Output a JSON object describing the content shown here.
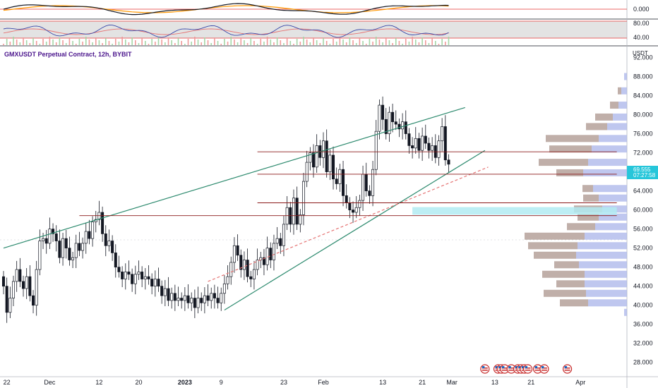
{
  "header": {
    "title": "GMXUSDT Perpetual Contract, 12h, BYBIT"
  },
  "axis": {
    "unit": "USDT"
  },
  "price_tag": {
    "price": "69.555",
    "countdown": "07:27:58",
    "color": "#26c6da"
  },
  "colors": {
    "up": "#131722",
    "down": "#131722",
    "trend": "#2e8b6f",
    "level": "#8b1a1a",
    "zone": "#b2ebf2"
  },
  "chart_data": {
    "type": "candlestick",
    "title": "GMXUSDT Perpetual Contract, 12h, BYBIT",
    "exchange": "BYBIT",
    "timeframe": "12h",
    "ylim": [
      25,
      94
    ],
    "price_ticks": [
      "92.000",
      "88.000",
      "84.000",
      "80.000",
      "76.000",
      "72.000",
      "68.000",
      "64.000",
      "60.000",
      "56.000",
      "52.000",
      "48.000",
      "44.000",
      "40.000",
      "36.000",
      "32.000",
      "28.000"
    ],
    "time_ticks": [
      {
        "label": "22",
        "bar": 1
      },
      {
        "label": "Dec",
        "bar": 14
      },
      {
        "label": "12",
        "bar": 29
      },
      {
        "label": "20",
        "bar": 41
      },
      {
        "label": "2023",
        "bar": 55,
        "bold": true
      },
      {
        "label": "9",
        "bar": 66
      },
      {
        "label": "23",
        "bar": 85
      },
      {
        "label": "Feb",
        "bar": 97
      },
      {
        "label": "13",
        "bar": 115
      },
      {
        "label": "21",
        "bar": 127
      },
      {
        "label": "Mar",
        "bar": 136
      },
      {
        "label": "13",
        "bar": 149
      },
      {
        "label": "21",
        "bar": 160
      },
      {
        "label": "Apr",
        "bar": 175
      }
    ],
    "close": [
      44.0,
      38.5,
      41.5,
      45.0,
      47.5,
      45.0,
      43.5,
      46.0,
      42.0,
      40.0,
      47.5,
      53.5,
      54.0,
      53.0,
      56.0,
      55.0,
      53.5,
      50.0,
      54.0,
      52.0,
      49.5,
      50.0,
      53.0,
      51.5,
      53.0,
      55.5,
      54.0,
      57.5,
      58.0,
      59.5,
      55.0,
      52.5,
      53.5,
      51.0,
      48.0,
      47.0,
      45.5,
      47.0,
      46.5,
      44.5,
      46.5,
      47.0,
      45.5,
      46.0,
      45.5,
      44.0,
      45.5,
      44.0,
      42.0,
      43.5,
      41.0,
      42.5,
      41.0,
      41.5,
      41.0,
      42.0,
      40.5,
      41.5,
      39.5,
      41.5,
      40.5,
      42.0,
      41.0,
      42.5,
      41.5,
      40.5,
      42.5,
      44.5,
      46.0,
      49.0,
      52.5,
      50.5,
      47.5,
      49.5,
      46.0,
      45.5,
      47.5,
      49.5,
      50.0,
      48.5,
      52.0,
      49.5,
      53.0,
      54.0,
      52.5,
      57.0,
      60.5,
      57.0,
      62.5,
      57.0,
      59.0,
      66.0,
      70.0,
      72.0,
      69.0,
      73.5,
      71.0,
      74.5,
      68.0,
      71.5,
      66.5,
      65.5,
      68.5,
      63.0,
      61.5,
      60.0,
      59.5,
      60.5,
      62.0,
      67.5,
      64.0,
      63.0,
      68.5,
      76.5,
      82.0,
      79.0,
      76.0,
      80.5,
      78.5,
      78.0,
      77.0,
      78.5,
      76.0,
      73.5,
      73.0,
      75.0,
      72.5,
      75.5,
      74.0,
      72.5,
      73.5,
      71.0,
      74.5,
      77.5,
      70.5,
      69.6
    ],
    "bars_total_slots": 188,
    "drawings": [
      {
        "type": "trendline",
        "name": "upper-channel",
        "from": {
          "bar": 0,
          "price": 52.0
        },
        "to": {
          "bar": 140,
          "price": 81.5
        },
        "color": "#2e8b6f"
      },
      {
        "type": "trendline",
        "name": "rising-support",
        "from": {
          "bar": 67,
          "price": 39.0
        },
        "to": {
          "bar": 146,
          "price": 72.5
        },
        "color": "#2e8b6f"
      },
      {
        "type": "trendline",
        "name": "dashed-support",
        "from": {
          "bar": 62,
          "price": 45.0
        },
        "to": {
          "bar": 147,
          "price": 69.0
        },
        "color": "#e57373",
        "dashed": true
      },
      {
        "type": "hline",
        "name": "resistance-72",
        "from_bar": 77,
        "to_bar": 186,
        "price": 72.2,
        "color": "#8b1a1a"
      },
      {
        "type": "hline",
        "name": "level-67",
        "from_bar": 77,
        "to_bar": 186,
        "price": 67.5,
        "color": "#8b1a1a"
      },
      {
        "type": "hline",
        "name": "level-61",
        "from_bar": 77,
        "to_bar": 186,
        "price": 61.5,
        "color": "#8b1a1a"
      },
      {
        "type": "hline",
        "name": "support-58",
        "from_bar": 23,
        "to_bar": 186,
        "price": 58.8,
        "color": "#8b1a1a"
      },
      {
        "type": "zone",
        "name": "demand-zone",
        "from_bar": 124,
        "to_bar": 186,
        "price_low": 59.0,
        "price_high": 60.6,
        "color": "#b2ebf2"
      }
    ],
    "volume_profile": [
      {
        "price": 88.0,
        "buy": 4,
        "sell": 0
      },
      {
        "price": 85.0,
        "buy": 8,
        "sell": 5
      },
      {
        "price": 82.0,
        "buy": 12,
        "sell": 12
      },
      {
        "price": 79.5,
        "buy": 20,
        "sell": 25
      },
      {
        "price": 77.5,
        "buy": 28,
        "sell": 30
      },
      {
        "price": 75.0,
        "buy": 40,
        "sell": 75
      },
      {
        "price": 72.8,
        "buy": 50,
        "sell": 60
      },
      {
        "price": 70.0,
        "buy": 55,
        "sell": 70
      },
      {
        "price": 67.8,
        "buy": 62,
        "sell": 38
      },
      {
        "price": 64.5,
        "buy": 48,
        "sell": 15
      },
      {
        "price": 62.5,
        "buy": 40,
        "sell": 22
      },
      {
        "price": 60.2,
        "buy": 35,
        "sell": 40
      },
      {
        "price": 58.5,
        "buy": 40,
        "sell": 30
      },
      {
        "price": 56.5,
        "buy": 45,
        "sell": 40
      },
      {
        "price": 54.5,
        "buy": 60,
        "sell": 85
      },
      {
        "price": 52.5,
        "buy": 70,
        "sell": 70
      },
      {
        "price": 50.5,
        "buy": 72,
        "sell": 60
      },
      {
        "price": 48.5,
        "buy": 68,
        "sell": 35
      },
      {
        "price": 46.5,
        "buy": 60,
        "sell": 60
      },
      {
        "price": 44.5,
        "buy": 60,
        "sell": 40
      },
      {
        "price": 42.5,
        "buy": 58,
        "sell": 60
      },
      {
        "price": 40.5,
        "buy": 55,
        "sell": 40
      },
      {
        "price": 38.5,
        "buy": 4,
        "sell": 0
      }
    ],
    "oscillators": [
      {
        "pane": "macd",
        "tick_labels": [
          "0.000"
        ],
        "zero_line_color": "#e53935"
      },
      {
        "pane": "rsi",
        "tick_labels": [
          "80.00",
          "40.00"
        ],
        "band_color": "#e3e3e3"
      }
    ],
    "event_markers_bars": [
      146,
      150,
      151,
      152,
      154,
      156,
      157,
      158,
      159,
      162,
      164,
      171
    ]
  }
}
